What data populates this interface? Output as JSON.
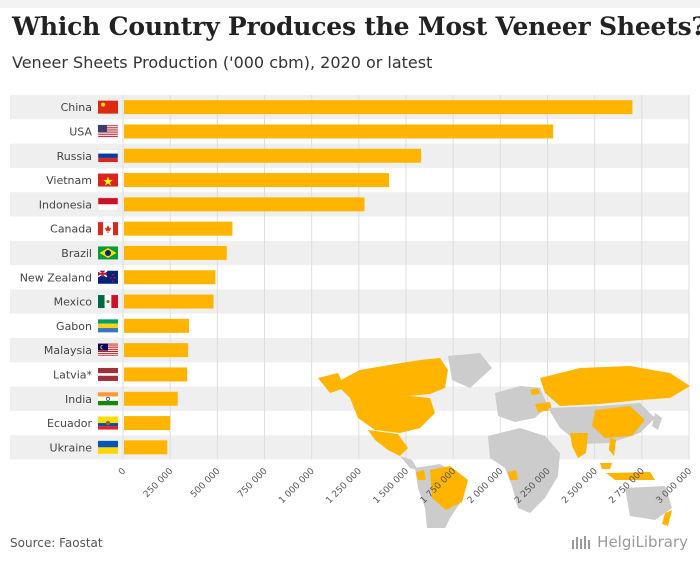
{
  "title": "Which Country Produces the Most Veneer Sheets?",
  "subtitle": "Veneer Sheets Production ('000 cbm), 2020 or latest",
  "source": "Source: Faostat",
  "logo_text": "HelgiLibrary",
  "colors": {
    "bar": "#FFB400",
    "band": "#efefef",
    "grid": "#dddddd",
    "map_land": "#cccccc",
    "map_highlight": "#FFB400"
  },
  "chart_data": {
    "type": "bar",
    "orientation": "horizontal",
    "categories": [
      "China",
      "USA",
      "Russia",
      "Vietnam",
      "Indonesia",
      "Canada",
      "Brazil",
      "New Zealand",
      "Mexico",
      "Gabon",
      "Malaysia",
      "Latvia*",
      "India",
      "Ecuador",
      "Ukraine"
    ],
    "flag_icons": [
      "flag-china",
      "flag-usa",
      "flag-russia",
      "flag-vietnam",
      "flag-indonesia",
      "flag-canada",
      "flag-brazil",
      "flag-new-zealand",
      "flag-mexico",
      "flag-gabon",
      "flag-malaysia",
      "flag-latvia",
      "flag-india",
      "flag-ecuador",
      "flag-ukraine"
    ],
    "values": [
      2700000,
      2280000,
      1580000,
      1410000,
      1280000,
      580000,
      550000,
      490000,
      480000,
      350000,
      345000,
      340000,
      290000,
      250000,
      235000
    ],
    "xlim": [
      0,
      3000000
    ],
    "xticks": [
      0,
      250000,
      500000,
      750000,
      1000000,
      1250000,
      1500000,
      1750000,
      2000000,
      2250000,
      2500000,
      2750000,
      3000000
    ],
    "xtick_labels": [
      "0",
      "250 000",
      "500 000",
      "750 000",
      "1 000 000",
      "1 250 000",
      "1 500 000",
      "1 750 000",
      "2 000 000",
      "2 250 000",
      "2 500 000",
      "2 750 000",
      "3 000 000"
    ],
    "grid": true
  }
}
